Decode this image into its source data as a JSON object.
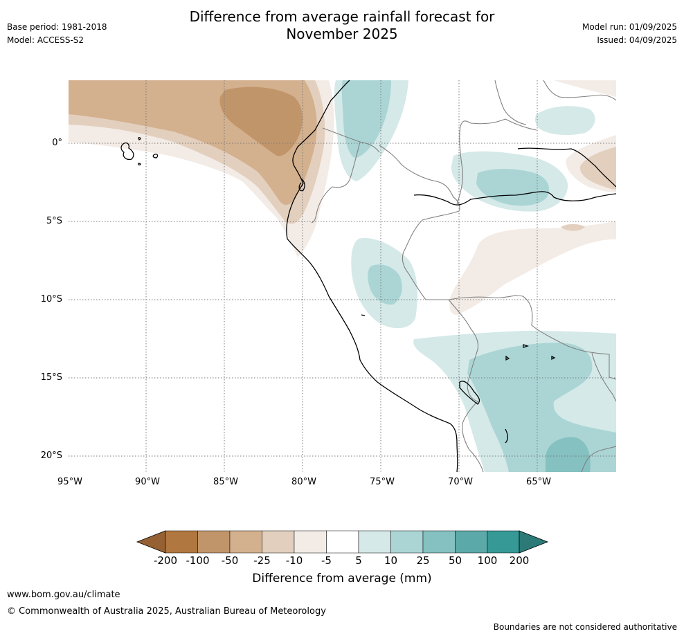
{
  "header": {
    "title_line1": "Difference from average rainfall forecast for",
    "title_line2": "November 2025",
    "base_period": "Base period: 1981-2018",
    "model": "Model: ACCESS-S2",
    "model_run": "Model run: 01/09/2025",
    "issued": "Issued: 04/09/2025"
  },
  "map": {
    "lat_labels": [
      "0°",
      "5°S",
      "10°S",
      "15°S",
      "20°S"
    ],
    "lon_labels": [
      "95°W",
      "90°W",
      "85°W",
      "80°W",
      "75°W",
      "70°W",
      "65°W"
    ],
    "colors": {
      "dry_strong": "#c1956a",
      "dry_mid": "#d3b08e",
      "dry_light": "#e3cfbd",
      "dry_faint": "#f3ebe6",
      "wet_faint": "#d4e9e8",
      "wet_light": "#abd5d5",
      "wet_mid": "#84c1c0",
      "coast": "#000000",
      "border": "#808080",
      "grid": "#777777"
    }
  },
  "colorbar": {
    "labels": [
      "-200",
      "-100",
      "-50",
      "-25",
      "-10",
      "-5",
      "5",
      "10",
      "25",
      "50",
      "100",
      "200"
    ],
    "colors": [
      "#956032",
      "#b07840",
      "#c1956a",
      "#d3b08e",
      "#e3cfbd",
      "#f3ebe6",
      "#ffffff",
      "#d4e9e8",
      "#abd5d5",
      "#84c1c0",
      "#5ca9a9",
      "#369995",
      "#2b7a78"
    ],
    "title": "Difference from average (mm)"
  },
  "footer": {
    "url": "www.bom.gov.au/climate",
    "copyright": "© Commonwealth of Australia 2025, Australian Bureau of Meteorology",
    "note": "Boundaries are not considered authoritative"
  }
}
